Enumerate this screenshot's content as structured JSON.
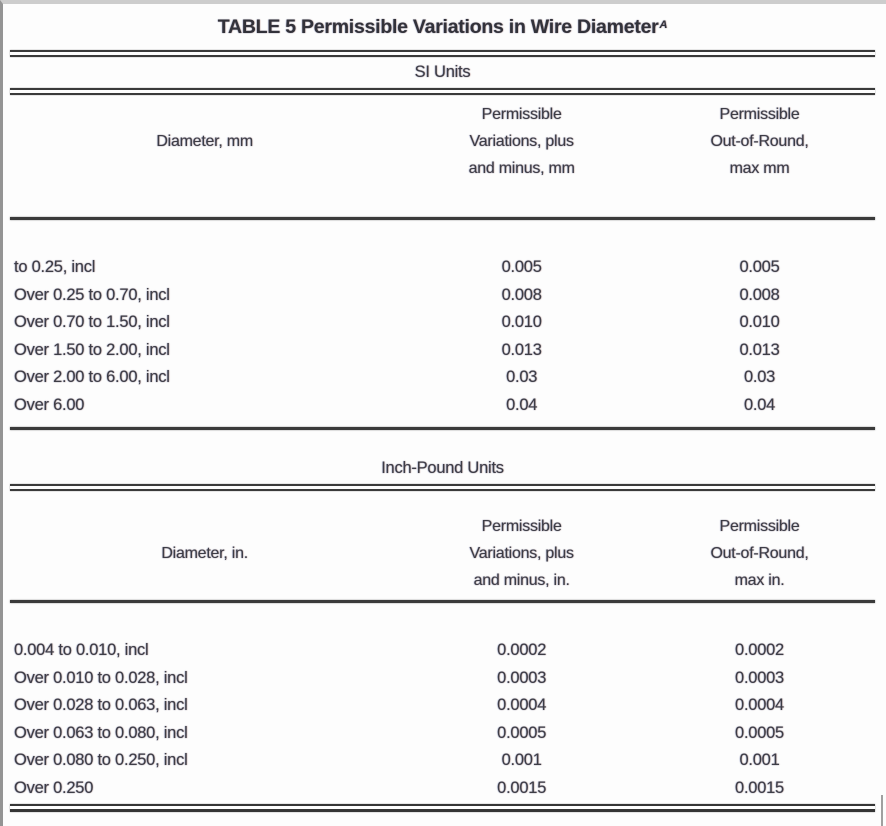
{
  "page": {
    "title": "TABLE 5 Permissible Variations in Wire Diameter",
    "title_footnote": "A"
  },
  "table": {
    "sections": [
      {
        "name": "SI Units",
        "columns": {
          "diameter": "Diameter, mm",
          "variation": "Permissible\nVariations, plus\nand minus, mm",
          "out_of_round": "Permissible\nOut-of-Round,\nmax mm"
        },
        "rows": [
          {
            "diameter": "to 0.25, incl",
            "variation": "0.005",
            "out_of_round": "0.005"
          },
          {
            "diameter": "Over 0.25 to 0.70, incl",
            "variation": "0.008",
            "out_of_round": "0.008"
          },
          {
            "diameter": "Over 0.70 to 1.50, incl",
            "variation": "0.010",
            "out_of_round": "0.010"
          },
          {
            "diameter": "Over 1.50 to 2.00, incl",
            "variation": "0.013",
            "out_of_round": "0.013"
          },
          {
            "diameter": "Over 2.00 to 6.00, incl",
            "variation": "0.03",
            "out_of_round": "0.03"
          },
          {
            "diameter": "Over 6.00",
            "variation": "0.04",
            "out_of_round": "0.04"
          }
        ]
      },
      {
        "name": "Inch-Pound Units",
        "columns": {
          "diameter": "Diameter, in.",
          "variation": "Permissible\nVariations, plus\nand minus, in.",
          "out_of_round": "Permissible\nOut-of-Round,\nmax in."
        },
        "rows": [
          {
            "diameter": "0.004 to 0.010, incl",
            "variation": "0.0002",
            "out_of_round": "0.0002"
          },
          {
            "diameter": "Over 0.010 to 0.028, incl",
            "variation": "0.0003",
            "out_of_round": "0.0003"
          },
          {
            "diameter": "Over 0.028 to 0.063, incl",
            "variation": "0.0004",
            "out_of_round": "0.0004"
          },
          {
            "diameter": "Over 0.063 to 0.080, incl",
            "variation": "0.0005",
            "out_of_round": "0.0005"
          },
          {
            "diameter": "Over 0.080 to 0.250, incl",
            "variation": "0.001",
            "out_of_round": "0.001"
          },
          {
            "diameter": "Over 0.250",
            "variation": "0.0015",
            "out_of_round": "0.0015"
          }
        ]
      }
    ]
  },
  "colors": {
    "text": "#3d3d46",
    "rule": "#3a3a3a",
    "frame_top": "#cdcdcd",
    "frame_left": "#949494",
    "background": "#fdfdfd"
  }
}
